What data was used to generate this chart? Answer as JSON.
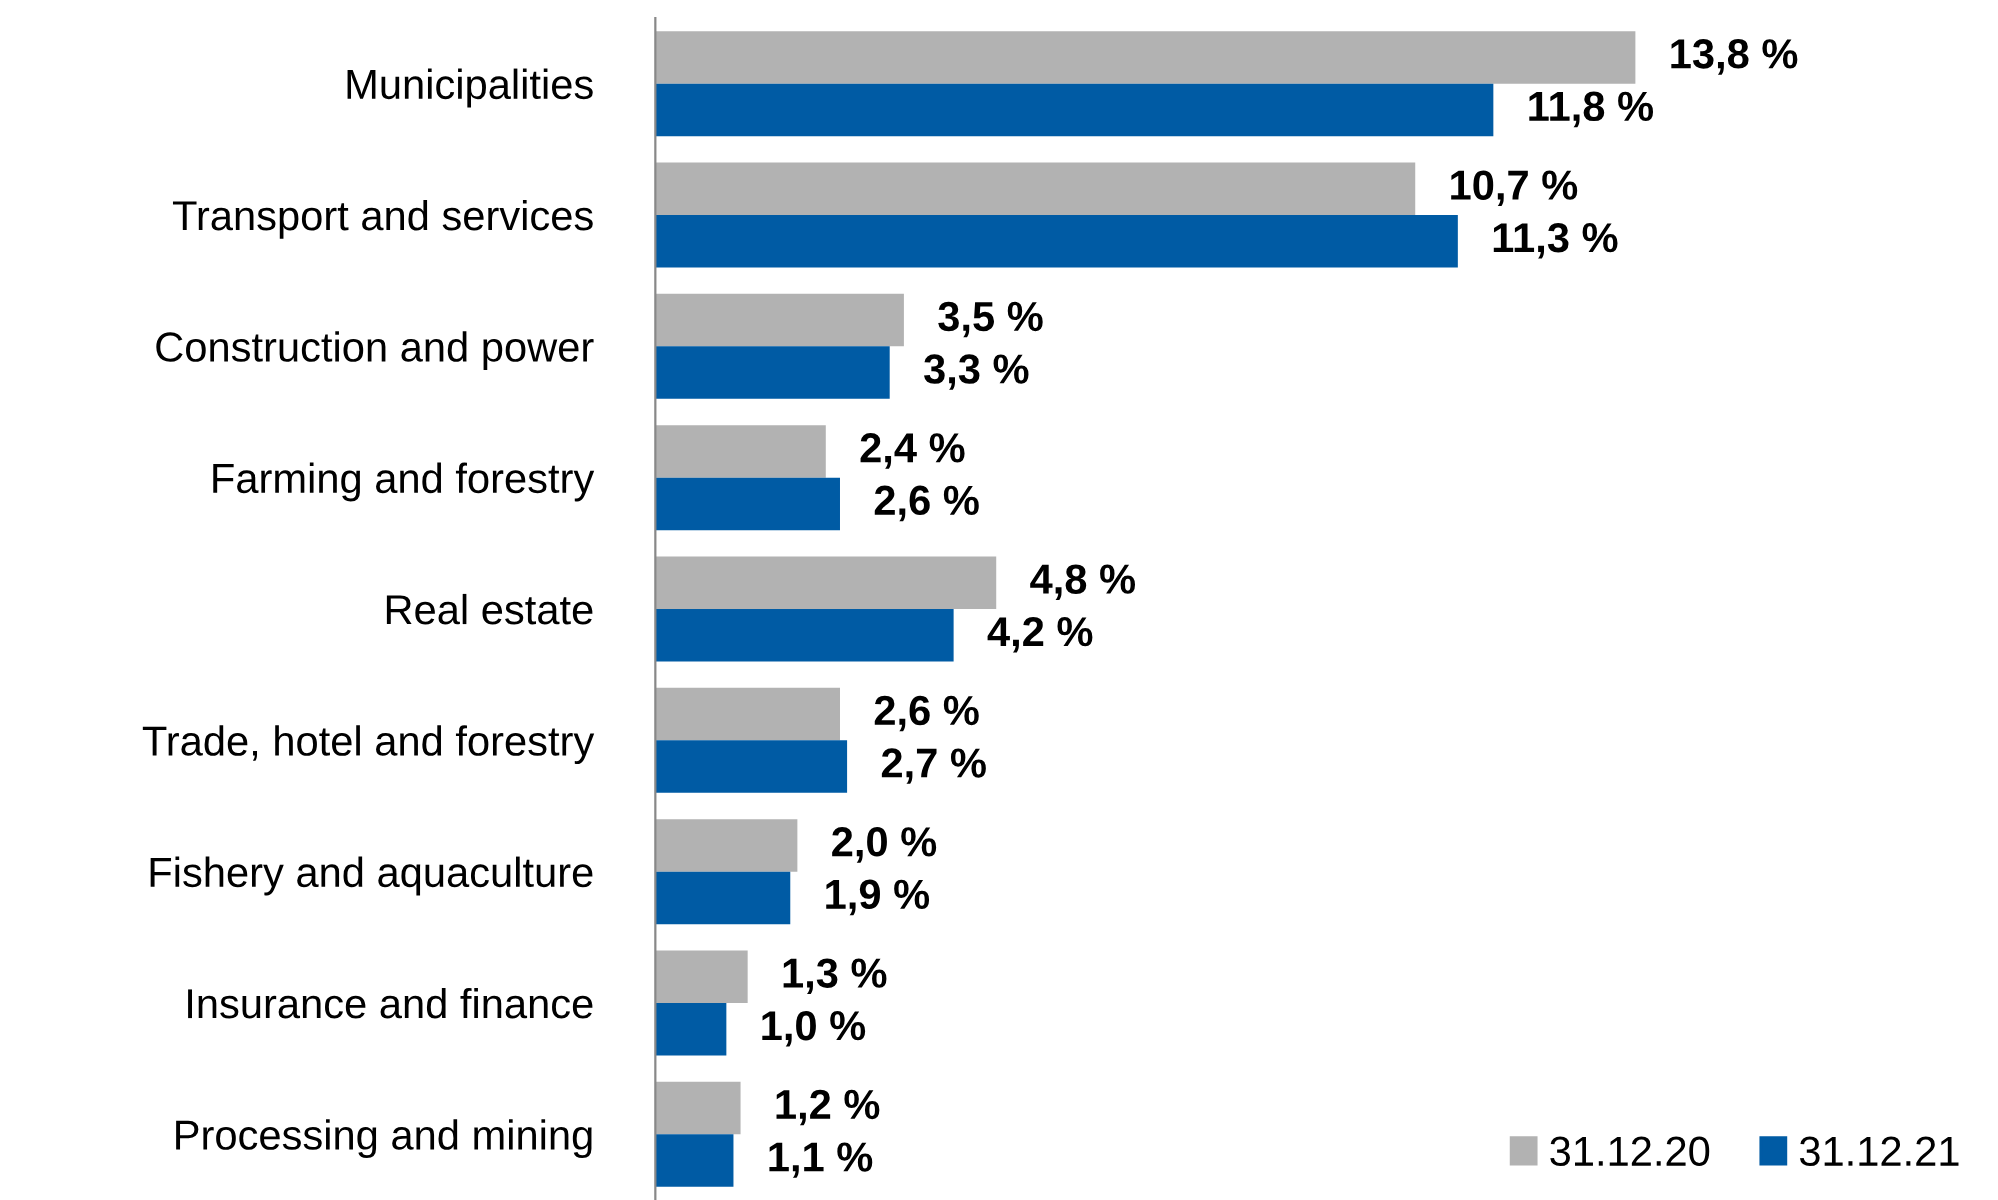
{
  "chart_data": {
    "type": "bar",
    "orientation": "horizontal",
    "categories": [
      "Municipalities",
      "Transport and services",
      "Construction and power",
      "Farming and forestry",
      "Real estate",
      "Trade, hotel and forestry",
      "Fishery and aquaculture",
      "Insurance and finance",
      "Processing and mining"
    ],
    "series": [
      {
        "name": "31.12.20",
        "color": "#b2b2b2",
        "values": [
          13.8,
          10.7,
          3.5,
          2.4,
          4.8,
          2.6,
          2.0,
          1.3,
          1.2
        ],
        "value_labels": [
          "13,8 %",
          "10,7 %",
          "3,5 %",
          "2,4 %",
          "4,8 %",
          "2,6 %",
          "2,0 %",
          "1,3 %",
          "1,2 %"
        ]
      },
      {
        "name": "31.12.21",
        "color": "#005ba4",
        "values": [
          11.8,
          11.3,
          3.3,
          2.6,
          4.2,
          2.7,
          1.9,
          1.0,
          1.1
        ],
        "value_labels": [
          "11,8 %",
          "11,3 %",
          "3,3 %",
          "2,6 %",
          "4,2 %",
          "2,7 %",
          "1,9 %",
          "1,0 %",
          "1,1 %"
        ]
      }
    ],
    "legend": "bottom right",
    "grid": false
  }
}
